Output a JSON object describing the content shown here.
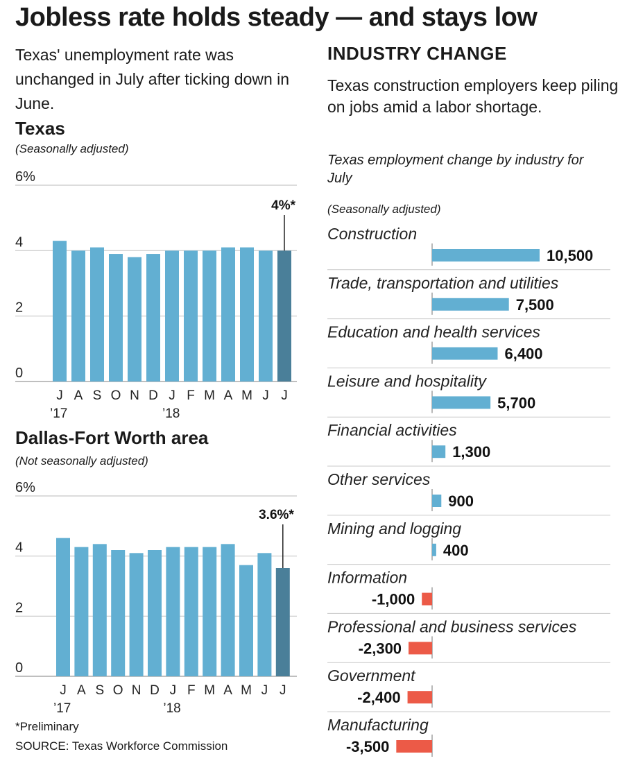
{
  "headline": "Jobless rate holds steady — and stays low",
  "intro": "Texas' unemployment rate was unchanged in July after ticking down in June.",
  "industry": {
    "title": "INDUSTRY CHANGE",
    "intro": "Texas construction employers keep piling on jobs amid a labor shortage.",
    "subtitle": "Texas employment change by industry for July",
    "adjust_note": "(Seasonally adjusted)"
  },
  "footnote": "*Preliminary",
  "source": "SOURCE: Texas Workforce Commission",
  "colors": {
    "bar": "#62afd2",
    "bar_highlight": "#4a7f99",
    "negative": "#ec5a47",
    "grid": "#c8c8c8"
  },
  "chart_data": [
    {
      "type": "bar",
      "title": "Texas",
      "subtitle": "(Seasonally adjusted)",
      "categories": [
        "J",
        "A",
        "S",
        "O",
        "N",
        "D",
        "J",
        "F",
        "M",
        "A",
        "M",
        "J",
        "J"
      ],
      "year_labels": [
        "’17",
        "’18"
      ],
      "year_label_index": [
        0,
        6
      ],
      "values": [
        4.3,
        4.0,
        4.1,
        3.9,
        3.8,
        3.9,
        4.0,
        4.0,
        4.0,
        4.1,
        4.1,
        4.0,
        4.0
      ],
      "ylim": [
        0,
        6
      ],
      "yticks": [
        0,
        2,
        4,
        6
      ],
      "ytick_labels": [
        "0",
        "2",
        "4",
        "6%"
      ],
      "annotation": "4%*",
      "highlight_index": 12,
      "grid": true
    },
    {
      "type": "bar",
      "title": "Dallas-Fort Worth area",
      "subtitle": "(Not seasonally adjusted)",
      "categories": [
        "J",
        "A",
        "S",
        "O",
        "N",
        "D",
        "J",
        "F",
        "M",
        "A",
        "M",
        "J",
        "J"
      ],
      "year_labels": [
        "’17",
        "’18"
      ],
      "year_label_index": [
        0,
        6
      ],
      "values": [
        4.6,
        4.3,
        4.4,
        4.2,
        4.1,
        4.2,
        4.3,
        4.3,
        4.3,
        4.4,
        3.7,
        4.1,
        3.6
      ],
      "ylim": [
        0,
        6
      ],
      "yticks": [
        0,
        2,
        4,
        6
      ],
      "ytick_labels": [
        "0",
        "2",
        "4",
        "6%"
      ],
      "annotation": "3.6%*",
      "highlight_index": 12,
      "grid": true
    },
    {
      "type": "bar",
      "orientation": "horizontal",
      "title": "Texas employment change by industry for July",
      "categories": [
        "Construction",
        "Trade, transportation and utilities",
        "Education and health services",
        "Leisure and hospitality",
        "Financial activities",
        "Other services",
        "Mining and logging",
        "Information",
        "Professional and business services",
        "Government",
        "Manufacturing"
      ],
      "values": [
        10500,
        7500,
        6400,
        5700,
        1300,
        900,
        400,
        -1000,
        -2300,
        -2400,
        -3500
      ],
      "value_labels": [
        "10,500",
        "7,500",
        "6,400",
        "5,700",
        "1,300",
        "900",
        "400",
        "-1,000",
        "-2,300",
        "-2,400",
        "-3,500"
      ]
    }
  ]
}
